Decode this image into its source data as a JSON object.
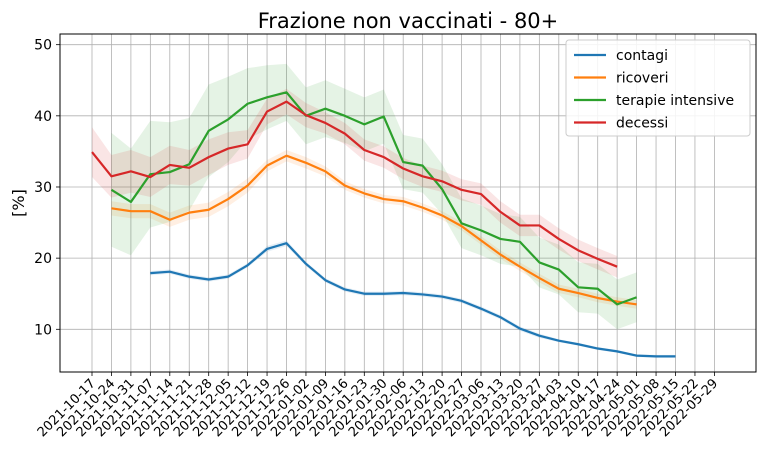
{
  "chart_data": {
    "type": "line",
    "title": "Frazione non vaccinati - 80+",
    "xlabel": "",
    "ylabel": "[%]",
    "ylim": [
      4,
      51.5
    ],
    "yticks": [
      10,
      20,
      30,
      40,
      50
    ],
    "grid": true,
    "legend_position": "top-right",
    "x": [
      "2021-10-17",
      "2021-10-24",
      "2021-10-31",
      "2021-11-07",
      "2021-11-14",
      "2021-11-21",
      "2021-11-28",
      "2021-12-05",
      "2021-12-12",
      "2021-12-19",
      "2021-12-26",
      "2022-01-02",
      "2022-01-09",
      "2022-01-16",
      "2022-01-23",
      "2022-01-30",
      "2022-02-06",
      "2022-02-13",
      "2022-02-20",
      "2022-02-27",
      "2022-03-06",
      "2022-03-13",
      "2022-03-20",
      "2022-03-27",
      "2022-04-03",
      "2022-04-10",
      "2022-04-17",
      "2022-04-24",
      "2022-05-01",
      "2022-05-08",
      "2022-05-15",
      "2022-05-22",
      "2022-05-29"
    ],
    "series": [
      {
        "name": "contagi",
        "color": "#1f77b4",
        "values": [
          null,
          null,
          null,
          17.9,
          18.1,
          17.4,
          17.0,
          17.4,
          19.0,
          21.3,
          22.1,
          19.2,
          16.9,
          15.6,
          15.0,
          15.0,
          15.1,
          14.9,
          14.6,
          14.0,
          12.9,
          11.7,
          10.1,
          9.1,
          8.4,
          7.9,
          7.3,
          6.9,
          6.3,
          6.2,
          6.2,
          null,
          null
        ],
        "band": [
          null,
          null,
          null,
          0.3,
          0.3,
          0.3,
          0.3,
          0.3,
          0.3,
          0.4,
          0.4,
          0.3,
          0.3,
          0.3,
          0.3,
          0.3,
          0.3,
          0.3,
          0.3,
          0.3,
          0.3,
          0.3,
          0.3,
          0.3,
          0.2,
          0.2,
          0.2,
          0.2,
          0.2,
          0.2,
          0.2,
          null,
          null
        ]
      },
      {
        "name": "ricoveri",
        "color": "#ff7f0e",
        "values": [
          null,
          27.0,
          26.6,
          26.6,
          25.4,
          26.4,
          26.8,
          28.3,
          30.2,
          33.0,
          34.4,
          33.4,
          32.2,
          30.2,
          29.1,
          28.3,
          28.0,
          27.1,
          26.0,
          24.5,
          22.5,
          20.5,
          18.8,
          17.2,
          15.7,
          15.1,
          14.4,
          13.9,
          13.5,
          null,
          null,
          null,
          null
        ],
        "band": [
          null,
          1.0,
          1.0,
          1.0,
          1.0,
          1.0,
          1.0,
          1.0,
          1.0,
          0.8,
          0.8,
          0.8,
          0.7,
          0.6,
          0.6,
          0.6,
          0.6,
          0.6,
          0.6,
          0.6,
          0.6,
          0.6,
          0.6,
          0.6,
          0.6,
          0.6,
          0.6,
          0.6,
          0.6,
          null,
          null,
          null,
          null
        ]
      },
      {
        "name": "terapie intensive",
        "color": "#2ca02c",
        "values": [
          null,
          29.6,
          27.9,
          31.8,
          32.1,
          33.2,
          37.9,
          39.5,
          41.7,
          42.6,
          43.3,
          40.0,
          41.0,
          40.0,
          38.8,
          39.9,
          33.5,
          33.0,
          29.7,
          24.9,
          23.9,
          22.7,
          22.3,
          19.4,
          18.4,
          15.9,
          15.7,
          13.5,
          14.5,
          null,
          null,
          null,
          null
        ],
        "band": [
          null,
          8.0,
          7.5,
          7.5,
          7.0,
          6.5,
          6.5,
          6.0,
          5.0,
          4.5,
          4.0,
          4.0,
          4.0,
          3.8,
          3.8,
          3.8,
          3.8,
          3.8,
          3.5,
          3.5,
          3.5,
          3.5,
          3.5,
          3.5,
          3.5,
          3.5,
          3.5,
          3.5,
          3.5,
          null,
          null,
          null,
          null
        ]
      },
      {
        "name": "decessi",
        "color": "#d62728",
        "values": [
          34.9,
          31.5,
          32.2,
          31.4,
          33.1,
          32.7,
          34.2,
          35.4,
          36.0,
          40.6,
          42.0,
          40.1,
          39.0,
          37.5,
          35.2,
          34.2,
          32.6,
          31.5,
          30.8,
          29.6,
          29.0,
          26.5,
          24.6,
          24.6,
          22.7,
          21.1,
          19.9,
          18.8,
          null,
          null,
          null,
          null,
          null
        ],
        "band": [
          3.5,
          3.0,
          3.0,
          2.8,
          2.7,
          2.5,
          2.5,
          2.3,
          2.0,
          1.8,
          1.8,
          1.7,
          1.5,
          1.5,
          1.5,
          1.5,
          1.5,
          1.5,
          1.5,
          1.5,
          1.5,
          1.5,
          1.5,
          1.5,
          1.5,
          1.5,
          1.5,
          1.5,
          null,
          null,
          null,
          null,
          null
        ]
      }
    ]
  }
}
